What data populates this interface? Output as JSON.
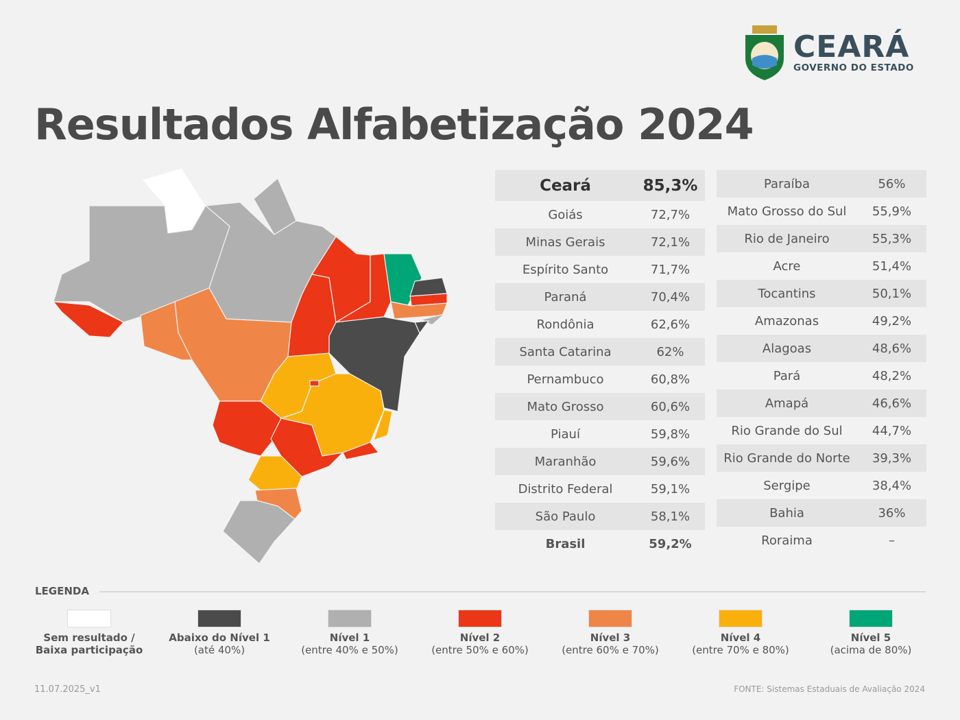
{
  "logo": {
    "title": "CEARÁ",
    "subtitle": "GOVERNO DO ESTADO"
  },
  "title": "Resultados Alfabetização 2024",
  "colors": {
    "sem_resultado": "#ffffff",
    "abaixo": "#4b4b4b",
    "nivel1": "#b0b0b0",
    "nivel2": "#eb3617",
    "nivel3": "#f08548",
    "nivel4": "#f9b00d",
    "nivel5": "#00a676"
  },
  "map_states": {
    "RR": "sem_resultado",
    "AM": "nivel1",
    "AP": "nivel1",
    "PA": "nivel1",
    "AC": "nivel2",
    "RO": "nivel3",
    "MT": "nivel3",
    "TO": "nivel2",
    "MA": "nivel2",
    "PI": "nivel2",
    "CE": "nivel5",
    "RN": "abaixo",
    "PB": "nivel2",
    "PE": "nivel3",
    "AL": "nivel1",
    "SE": "abaixo",
    "BA": "abaixo",
    "GO": "nivel4",
    "DF": "nivel2",
    "MG": "nivel4",
    "ES": "nivel4",
    "MS": "nivel2",
    "SP": "nivel2",
    "RJ": "nivel2",
    "PR": "nivel4",
    "SC": "nivel3",
    "RS": "nivel1"
  },
  "table_left": [
    {
      "state": "Ceará",
      "value": "85,3%"
    },
    {
      "state": "Goiás",
      "value": "72,7%"
    },
    {
      "state": "Minas Gerais",
      "value": "72,1%"
    },
    {
      "state": "Espírito Santo",
      "value": "71,7%"
    },
    {
      "state": "Paraná",
      "value": "70,4%"
    },
    {
      "state": "Rondônia",
      "value": "62,6%"
    },
    {
      "state": "Santa Catarina",
      "value": "62%"
    },
    {
      "state": "Pernambuco",
      "value": "60,8%"
    },
    {
      "state": "Mato Grosso",
      "value": "60,6%"
    },
    {
      "state": "Piauí",
      "value": "59,8%"
    },
    {
      "state": "Maranhão",
      "value": "59,6%"
    },
    {
      "state": "Distrito Federal",
      "value": "59,1%"
    },
    {
      "state": "São Paulo",
      "value": "58,1%"
    },
    {
      "state": "Brasil",
      "value": "59,2%"
    }
  ],
  "table_right": [
    {
      "state": "Paraíba",
      "value": "56%"
    },
    {
      "state": "Mato Grosso do Sul",
      "value": "55,9%"
    },
    {
      "state": "Rio de Janeiro",
      "value": "55,3%"
    },
    {
      "state": "Acre",
      "value": "51,4%"
    },
    {
      "state": "Tocantins",
      "value": "50,1%"
    },
    {
      "state": "Amazonas",
      "value": "49,2%"
    },
    {
      "state": "Alagoas",
      "value": "48,6%"
    },
    {
      "state": "Pará",
      "value": "48,2%"
    },
    {
      "state": "Amapá",
      "value": "46,6%"
    },
    {
      "state": "Rio Grande do Sul",
      "value": "44,7%"
    },
    {
      "state": "Rio Grande do Norte",
      "value": "39,3%"
    },
    {
      "state": "Sergipe",
      "value": "38,4%"
    },
    {
      "state": "Bahia",
      "value": "36%"
    },
    {
      "state": "Roraima",
      "value": "–"
    }
  ],
  "legend": {
    "title": "LEGENDA",
    "items": [
      {
        "key": "sem_resultado",
        "label": "Sem resultado /",
        "sub": "Baixa participação",
        "sub_bold": true
      },
      {
        "key": "abaixo",
        "label": "Abaixo do Nível 1",
        "sub": "(até 40%)"
      },
      {
        "key": "nivel1",
        "label": "Nível 1",
        "sub": "(entre 40% e 50%)"
      },
      {
        "key": "nivel2",
        "label": "Nível 2",
        "sub": "(entre 50% e 60%)"
      },
      {
        "key": "nivel3",
        "label": "Nível 3",
        "sub": "(entre 60% e 70%)"
      },
      {
        "key": "nivel4",
        "label": "Nível 4",
        "sub": "(entre 70% e 80%)"
      },
      {
        "key": "nivel5",
        "label": "Nível 5",
        "sub": "(acima de 80%)"
      }
    ]
  },
  "footer": {
    "version": "11.07.2025_v1",
    "source": "FONTE: Sistemas Estaduais de Avaliação 2024"
  }
}
